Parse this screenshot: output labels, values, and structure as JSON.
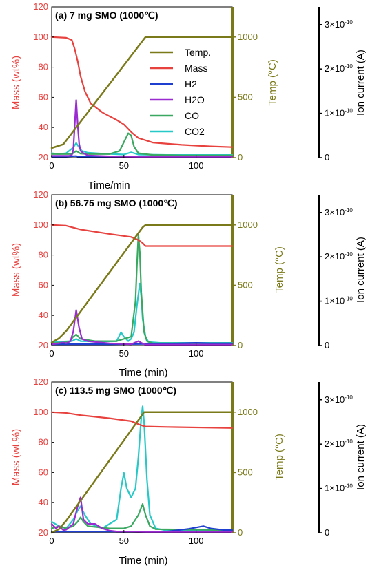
{
  "colors": {
    "mass": "#e8423f",
    "temp": "#7a7a1a",
    "H2": "#1f3fd0",
    "H2O": "#9a2bd0",
    "CO": "#3aa860",
    "CO2": "#27c8c8",
    "ion_axis": "#000000"
  },
  "legend": [
    "Temp.",
    "Mass",
    "H2",
    "H2O",
    "CO",
    "CO2"
  ],
  "chart_data": [
    {
      "type": "line",
      "title": "(a)    7 mg SMO (1000℃)",
      "xlabel": "Time/min",
      "ylabel_left": "Mass (wt%)",
      "ylabel_right": "Temp (°C)",
      "ylabel_ion": "Ion current (A)",
      "xlim": [
        0,
        125
      ],
      "ylim_left": [
        20,
        120
      ],
      "ylim_right": [
        0,
        1250
      ],
      "ylim_ion": [
        0,
        3.4e-10
      ],
      "xticks": [
        "0",
        "50",
        "100"
      ],
      "yticks_left": [
        "20",
        "40",
        "60",
        "80",
        "100",
        "120"
      ],
      "yticks_right": [
        "0",
        "500",
        "1000"
      ],
      "yticks_ion": [
        "0",
        "1×10⁻¹⁰",
        "2×10⁻¹⁰",
        "3×10⁻¹⁰"
      ],
      "series": [
        {
          "name": "Temp.",
          "axis": "right",
          "x": [
            0,
            8,
            65,
            125
          ],
          "y": [
            80,
            110,
            1000,
            1000
          ]
        },
        {
          "name": "Mass",
          "axis": "left",
          "x": [
            0,
            10,
            14,
            16,
            18,
            20,
            23,
            27,
            35,
            45,
            50,
            55,
            60,
            70,
            90,
            110,
            125
          ],
          "y": [
            100,
            99.5,
            98,
            92,
            84,
            74,
            64,
            56,
            50,
            45,
            42,
            37,
            33,
            30,
            28.5,
            27.5,
            27
          ]
        },
        {
          "name": "H2",
          "axis": "ion",
          "x": [
            0,
            10,
            17,
            18,
            30,
            60,
            90,
            125
          ],
          "y": [
            2.5e-12,
            2.5e-12,
            3.5e-12,
            2.5e-12,
            2.5e-12,
            2.5e-12,
            3e-12,
            3e-12
          ]
        },
        {
          "name": "H2O",
          "axis": "ion",
          "x": [
            0,
            12,
            14,
            15,
            16,
            17,
            18,
            19,
            20,
            22,
            25,
            40,
            60,
            125
          ],
          "y": [
            4e-12,
            4e-12,
            6e-12,
            1.8e-11,
            7.5e-11,
            1.3e-10,
            7.5e-11,
            3.2e-11,
            1.5e-11,
            1e-11,
            5e-12,
            3e-12,
            2e-12,
            2e-12
          ]
        },
        {
          "name": "CO",
          "axis": "ion",
          "x": [
            0,
            14,
            17,
            20,
            25,
            40,
            47,
            50,
            53,
            55,
            57,
            60,
            70,
            90,
            125
          ],
          "y": [
            8e-12,
            8e-12,
            1.5e-11,
            9e-12,
            8e-12,
            8e-12,
            1.5e-11,
            3.5e-11,
            5.5e-11,
            5e-11,
            2.5e-11,
            1e-11,
            6e-12,
            5e-12,
            5e-12
          ]
        },
        {
          "name": "CO2",
          "axis": "ion",
          "x": [
            0,
            5,
            10,
            15,
            17,
            19,
            21,
            25,
            35,
            50,
            55,
            60,
            80,
            125
          ],
          "y": [
            1e-11,
            8e-12,
            1e-11,
            2.3e-11,
            3.3e-11,
            2.3e-11,
            1.5e-11,
            1.1e-11,
            9e-12,
            7e-12,
            1.2e-11,
            7e-12,
            6e-12,
            6e-12
          ]
        }
      ]
    },
    {
      "type": "line",
      "title": "(b)    56.75 mg SMO (1000℃)",
      "xlabel": "Time (min)",
      "ylabel_left": "Mass (wt%)",
      "ylabel_right": "Temp (°C)",
      "ylabel_ion": "Ion current (A)",
      "xlim": [
        0,
        125
      ],
      "ylim_left": [
        20,
        120
      ],
      "ylim_right": [
        0,
        1250
      ],
      "ylim_ion": [
        0,
        3.4e-10
      ],
      "xticks": [
        "0",
        "50",
        "100"
      ],
      "yticks_left": [
        "20",
        "40",
        "60",
        "80",
        "100",
        "120"
      ],
      "yticks_right": [
        "0",
        "500",
        "1000"
      ],
      "yticks_ion": [
        "0",
        "1×10⁻¹⁰",
        "2×10⁻¹⁰",
        "3×10⁻¹⁰"
      ],
      "series": [
        {
          "name": "Temp.",
          "axis": "right",
          "x": [
            0,
            5,
            10,
            63,
            65,
            125
          ],
          "y": [
            25,
            60,
            120,
            980,
            1000,
            1000
          ]
        },
        {
          "name": "Mass",
          "axis": "left",
          "x": [
            0,
            10,
            20,
            40,
            55,
            60,
            63,
            65,
            125
          ],
          "y": [
            100,
            99.5,
            97,
            94,
            92,
            90,
            88,
            86,
            86
          ]
        },
        {
          "name": "H2",
          "axis": "ion",
          "x": [
            0,
            40,
            80,
            100,
            110,
            125
          ],
          "y": [
            3e-12,
            3e-12,
            4e-12,
            6e-12,
            5e-12,
            5e-12
          ]
        },
        {
          "name": "H2O",
          "axis": "ion",
          "x": [
            0,
            5,
            8,
            10,
            13,
            15,
            17,
            19,
            21,
            25,
            30,
            40,
            55,
            60,
            62,
            65,
            125
          ],
          "y": [
            3e-12,
            5e-12,
            7e-12,
            5e-12,
            1e-11,
            3.2e-11,
            8e-11,
            4e-11,
            1.5e-11,
            1e-11,
            8e-12,
            5e-12,
            3e-12,
            1e-11,
            6e-12,
            2e-12,
            2e-12
          ]
        },
        {
          "name": "CO",
          "axis": "ion",
          "x": [
            0,
            12,
            15,
            17,
            20,
            30,
            45,
            55,
            58,
            59,
            60,
            61,
            62,
            64,
            66,
            70,
            125
          ],
          "y": [
            5e-12,
            8e-12,
            2e-11,
            2.5e-11,
            1.5e-11,
            1e-11,
            1e-11,
            2e-11,
            1e-10,
            1.8e-10,
            2.5e-10,
            2.1e-10,
            1.2e-10,
            3e-11,
            1e-11,
            5e-12,
            5e-12
          ]
        },
        {
          "name": "CO2",
          "axis": "ion",
          "x": [
            0,
            14,
            17,
            20,
            30,
            45,
            48,
            50,
            53,
            55,
            57,
            59,
            61,
            62,
            63,
            65,
            67,
            75,
            125
          ],
          "y": [
            8e-12,
            1e-11,
            1.5e-11,
            1e-11,
            9e-12,
            1e-11,
            3e-11,
            2e-11,
            1e-11,
            1.5e-11,
            3e-11,
            9e-11,
            1.4e-10,
            1.1e-10,
            6e-11,
            2e-11,
            8e-12,
            6e-12,
            6e-12
          ]
        }
      ]
    },
    {
      "type": "line",
      "title": "(c)    113.5 mg SMO (1000℃)",
      "xlabel": "Time (min)",
      "ylabel_left": "Mass (wt.%)",
      "ylabel_right": "Temp (°C)",
      "ylabel_ion": "Ion current (A)",
      "xlim": [
        0,
        125
      ],
      "ylim_left": [
        20,
        120
      ],
      "ylim_right": [
        0,
        1250
      ],
      "ylim_ion": [
        0,
        3.4e-10
      ],
      "xticks": [
        "0",
        "50",
        "100"
      ],
      "yticks_left": [
        "20",
        "40",
        "60",
        "80",
        "100",
        "120"
      ],
      "yticks_right": [
        "0",
        "500",
        "1000"
      ],
      "yticks_ion": [
        "0",
        "1×10⁻¹⁰",
        "2×10⁻¹⁰",
        "3×10⁻¹⁰"
      ],
      "series": [
        {
          "name": "Temp.",
          "axis": "right",
          "x": [
            0,
            5,
            10,
            64,
            125
          ],
          "y": [
            0,
            30,
            100,
            1000,
            1000
          ]
        },
        {
          "name": "Mass",
          "axis": "left",
          "x": [
            0,
            10,
            20,
            40,
            55,
            60,
            63,
            65,
            80,
            125
          ],
          "y": [
            100,
            99.5,
            98,
            96,
            94,
            92,
            91,
            90.5,
            90.2,
            89.5
          ]
        },
        {
          "name": "H2",
          "axis": "ion",
          "x": [
            0,
            60,
            80,
            95,
            105,
            110,
            120,
            125
          ],
          "y": [
            3e-12,
            3e-12,
            3e-12,
            9e-12,
            1.5e-11,
            1e-11,
            6e-12,
            6e-12
          ]
        },
        {
          "name": "H2O",
          "axis": "ion",
          "x": [
            0,
            3,
            5,
            8,
            10,
            15,
            18,
            20,
            22,
            25,
            30,
            35,
            40,
            45,
            55,
            65,
            125
          ],
          "y": [
            2e-11,
            1e-11,
            1.5e-11,
            6e-12,
            7e-12,
            2e-11,
            6e-11,
            8e-11,
            3e-11,
            2e-11,
            2e-11,
            1e-11,
            5e-12,
            3e-12,
            3e-12,
            2e-12,
            2e-12
          ]
        },
        {
          "name": "CO",
          "axis": "ion",
          "x": [
            0,
            5,
            10,
            15,
            18,
            20,
            22,
            25,
            40,
            50,
            55,
            60,
            63,
            65,
            68,
            72,
            125
          ],
          "y": [
            1e-11,
            1.5e-11,
            1e-11,
            1.5e-11,
            2.5e-11,
            3.5e-11,
            2.5e-11,
            1.5e-11,
            1e-11,
            1e-11,
            1.5e-11,
            4e-11,
            6.5e-11,
            4e-11,
            1.5e-11,
            8e-12,
            6e-12
          ]
        },
        {
          "name": "CO2",
          "axis": "ion",
          "x": [
            0,
            5,
            10,
            15,
            18,
            20,
            23,
            27,
            35,
            45,
            48,
            50,
            52,
            55,
            58,
            60,
            62,
            63,
            64,
            66,
            68,
            72,
            80,
            125
          ],
          "y": [
            2.5e-11,
            1.5e-11,
            1e-11,
            3e-11,
            5e-11,
            6e-11,
            4e-11,
            2e-11,
            1e-11,
            3e-11,
            1e-10,
            1.35e-10,
            1e-10,
            8e-11,
            1e-10,
            1.7e-10,
            2.6e-10,
            2.85e-10,
            2.5e-10,
            1.2e-10,
            4e-11,
            1e-11,
            5e-12,
            5e-12
          ]
        }
      ]
    }
  ]
}
